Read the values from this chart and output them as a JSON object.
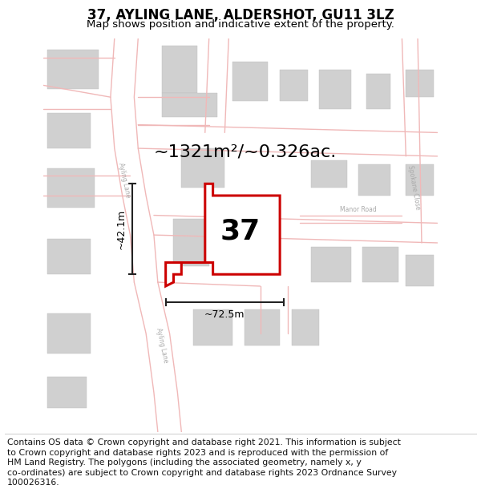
{
  "title": "37, AYLING LANE, ALDERSHOT, GU11 3LZ",
  "subtitle": "Map shows position and indicative extent of the property.",
  "footer_line1": "Contains OS data © Crown copyright and database right 2021. This information is subject",
  "footer_line2": "to Crown copyright and database rights 2023 and is reproduced with the permission of",
  "footer_line3": "HM Land Registry. The polygons (including the associated geometry, namely x, y",
  "footer_line4": "co-ordinates) are subject to Crown copyright and database rights 2023 Ordnance Survey",
  "footer_line5": "100026316.",
  "area_label": "~1321m²/~0.326ac.",
  "number_label": "37",
  "width_label": "~72.5m",
  "height_label": "~42.1m",
  "road_label_ayling1": "Ayling Lane",
  "road_label_ayling2": "Ayling Lane",
  "road_label_manor": "Manor Road",
  "road_label_spokane": "Spokane Close",
  "bg_color": "#ffffff",
  "map_bg": "#f8f8f8",
  "road_color": "#f0b8b8",
  "building_color": "#d0d0d0",
  "building_edge": "#c0c0c0",
  "highlight_color": "#cc0000",
  "highlight_fill": "#ffffff",
  "dim_line_color": "#222222",
  "title_fontsize": 12,
  "subtitle_fontsize": 9.5,
  "footer_fontsize": 7.8,
  "area_fontsize": 16,
  "number_fontsize": 26
}
